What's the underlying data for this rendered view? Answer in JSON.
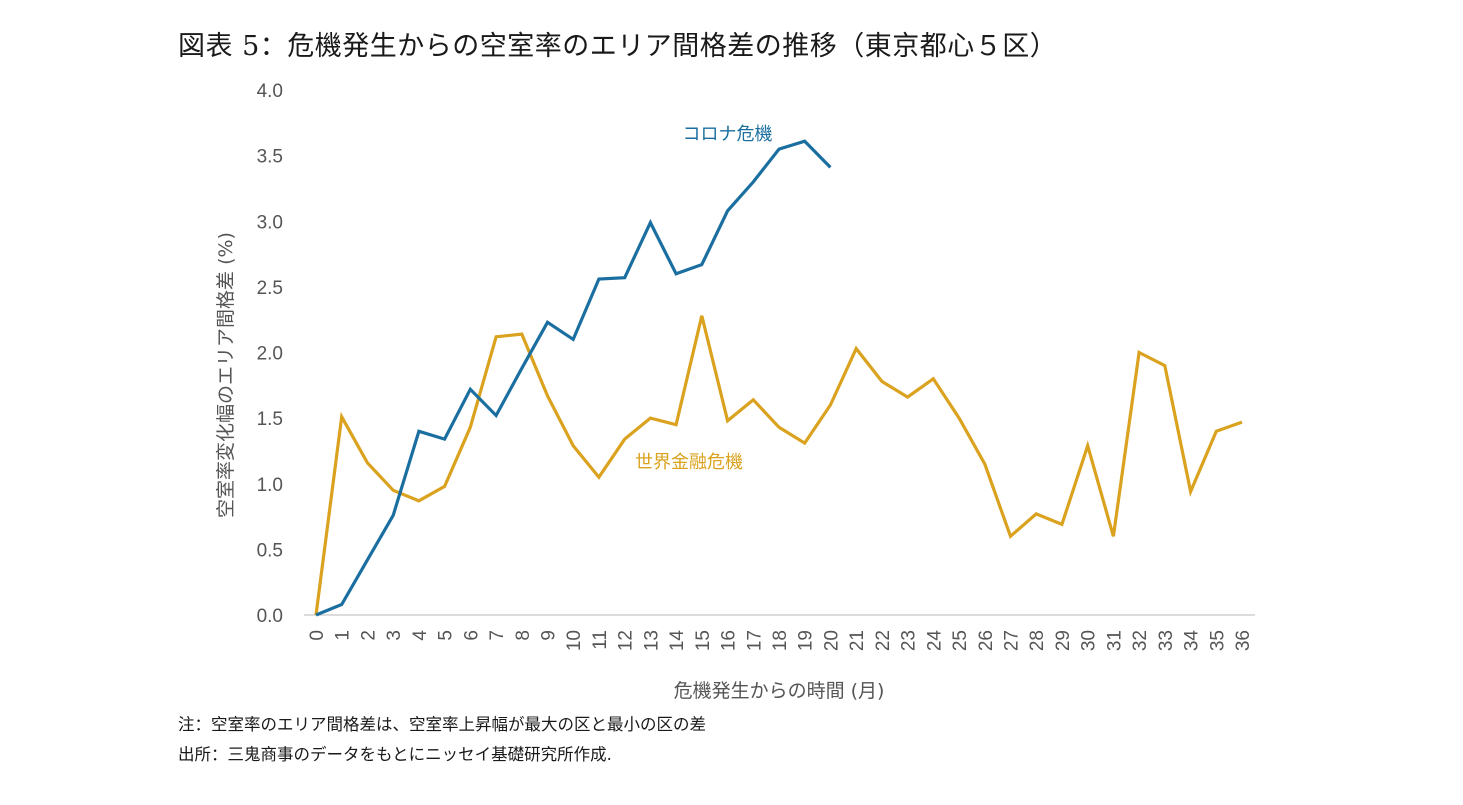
{
  "title": "図表 5：危機発生からの空室率のエリア間格差の推移（東京都心５区）",
  "notes": {
    "note": "注：空室率のエリア間格差は、空室率上昇幅が最大の区と最小の区の差",
    "source": "出所：三鬼商事のデータをもとにニッセイ基礎研究所作成."
  },
  "chart_data": {
    "type": "line",
    "title": "図表 5：危機発生からの空室率のエリア間格差の推移（東京都心５区）",
    "xlabel": "危機発生からの時間 (月)",
    "ylabel": "空室率変化幅のエリア間格差 (%)",
    "x": [
      0,
      1,
      2,
      3,
      4,
      5,
      6,
      7,
      8,
      9,
      10,
      11,
      12,
      13,
      14,
      15,
      16,
      17,
      18,
      19,
      20,
      21,
      22,
      23,
      24,
      25,
      26,
      27,
      28,
      29,
      30,
      31,
      32,
      33,
      34,
      35,
      36
    ],
    "ylim": [
      0,
      4.0
    ],
    "yticks": [
      "0.0",
      "0.5",
      "1.0",
      "1.5",
      "2.0",
      "2.5",
      "3.0",
      "3.5",
      "4.0"
    ],
    "ytick_values": [
      0,
      0.5,
      1.0,
      1.5,
      2.0,
      2.5,
      3.0,
      3.5,
      4.0
    ],
    "grid": false,
    "legend": "inline labels",
    "series": [
      {
        "name": "世界金融危機",
        "color": "#DAA21E",
        "values": [
          0,
          1.51,
          1.16,
          0.95,
          0.87,
          0.98,
          1.43,
          2.12,
          2.14,
          1.67,
          1.29,
          1.05,
          1.34,
          1.5,
          1.45,
          2.28,
          1.48,
          1.64,
          1.43,
          1.31,
          1.6,
          2.03,
          1.78,
          1.66,
          1.8,
          1.5,
          1.15,
          0.6,
          0.77,
          0.69,
          1.29,
          0.6,
          2.0,
          1.9,
          0.94,
          1.4,
          1.47
        ],
        "label_at": {
          "x": 14.5,
          "y": 1.12
        }
      },
      {
        "name": "コロナ危機",
        "color": "#1B6FA0",
        "values": [
          0,
          0.08,
          0.42,
          0.76,
          1.4,
          1.34,
          1.72,
          1.52,
          1.88,
          2.23,
          2.1,
          2.56,
          2.57,
          2.99,
          2.6,
          2.67,
          3.08,
          3.3,
          3.55,
          3.61,
          3.41
        ],
        "label_at": {
          "x": 16,
          "y": 3.62
        }
      }
    ]
  }
}
